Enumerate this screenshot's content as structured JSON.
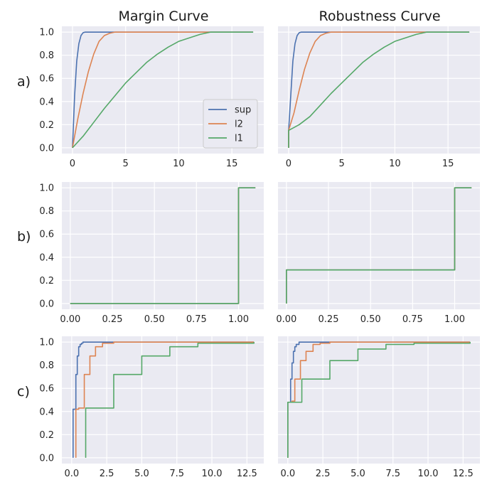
{
  "column_titles": [
    "Margin Curve",
    "Robustness Curve"
  ],
  "row_labels": [
    "a)",
    "b)",
    "c)"
  ],
  "legend": [
    "sup",
    "l2",
    "l1"
  ],
  "colors": {
    "sup": "#4c72b0",
    "l2": "#dd8452",
    "l1": "#55a868",
    "panel_bg": "#eaeaf2",
    "grid": "#ffffff"
  },
  "chart_data": [
    {
      "type": "line",
      "title": "Margin Curve",
      "row": "a)",
      "xlim": [
        -1,
        18
      ],
      "ylim": [
        -0.05,
        1.05
      ],
      "xticks": [
        0,
        5,
        10,
        15
      ],
      "xtick_labels": [
        "0",
        "5",
        "10",
        "15"
      ],
      "yticks": [
        0,
        0.2,
        0.4,
        0.6,
        0.8,
        1.0
      ],
      "ytick_labels": [
        "0.0",
        "0.2",
        "0.4",
        "0.6",
        "0.8",
        "1.0"
      ],
      "show_yticks": true,
      "legend_position": "center-right",
      "series": [
        {
          "name": "sup",
          "x": [
            0,
            0.2,
            0.4,
            0.6,
            0.8,
            1.0,
            1.2,
            17
          ],
          "y": [
            0,
            0.45,
            0.75,
            0.9,
            0.97,
            0.995,
            1.0,
            1.0
          ]
        },
        {
          "name": "l2",
          "x": [
            0,
            0.5,
            1,
            1.5,
            2,
            2.5,
            3,
            3.5,
            4,
            17
          ],
          "y": [
            0,
            0.25,
            0.47,
            0.66,
            0.81,
            0.92,
            0.97,
            0.99,
            1.0,
            1.0
          ]
        },
        {
          "name": "l1",
          "x": [
            0,
            1,
            2,
            3,
            4,
            5,
            6,
            7,
            8,
            9,
            10,
            11,
            12,
            13,
            17
          ],
          "y": [
            0,
            0.1,
            0.22,
            0.34,
            0.45,
            0.56,
            0.65,
            0.74,
            0.81,
            0.87,
            0.92,
            0.95,
            0.98,
            1.0,
            1.0
          ]
        }
      ]
    },
    {
      "type": "line",
      "title": "Robustness Curve",
      "row": "a)",
      "xlim": [
        -1,
        18
      ],
      "ylim": [
        -0.05,
        1.05
      ],
      "xticks": [
        0,
        5,
        10,
        15
      ],
      "xtick_labels": [
        "0",
        "5",
        "10",
        "15"
      ],
      "yticks": [
        0,
        0.2,
        0.4,
        0.6,
        0.8,
        1.0
      ],
      "ytick_labels": [],
      "show_yticks": false,
      "series": [
        {
          "name": "sup",
          "x": [
            0,
            0,
            0.2,
            0.4,
            0.6,
            0.8,
            1.0,
            1.2,
            17
          ],
          "y": [
            0,
            0.15,
            0.45,
            0.75,
            0.9,
            0.97,
            0.995,
            1.0,
            1.0
          ]
        },
        {
          "name": "l2",
          "x": [
            0,
            0,
            0.5,
            1,
            1.5,
            2,
            2.5,
            3,
            3.5,
            4,
            17
          ],
          "y": [
            0,
            0.15,
            0.3,
            0.5,
            0.68,
            0.82,
            0.92,
            0.97,
            0.99,
            1.0,
            1.0
          ]
        },
        {
          "name": "l1",
          "x": [
            0,
            0,
            1,
            2,
            3,
            4,
            5,
            6,
            7,
            8,
            9,
            10,
            11,
            12,
            13,
            17
          ],
          "y": [
            0,
            0.15,
            0.2,
            0.27,
            0.37,
            0.47,
            0.56,
            0.65,
            0.74,
            0.81,
            0.87,
            0.92,
            0.95,
            0.98,
            1.0,
            1.0
          ]
        }
      ]
    },
    {
      "type": "line",
      "title": "",
      "row": "b)",
      "xlim": [
        -0.05,
        1.15
      ],
      "ylim": [
        -0.05,
        1.05
      ],
      "xticks": [
        0,
        0.25,
        0.5,
        0.75,
        1.0
      ],
      "xtick_labels": [
        "0.00",
        "0.25",
        "0.50",
        "0.75",
        "1.00"
      ],
      "yticks": [
        0,
        0.2,
        0.4,
        0.6,
        0.8,
        1.0
      ],
      "ytick_labels": [
        "0.0",
        "0.2",
        "0.4",
        "0.6",
        "0.8",
        "1.0"
      ],
      "show_yticks": true,
      "series": [
        {
          "name": "sup",
          "x": [
            0,
            1.0,
            1.0,
            1.1
          ],
          "y": [
            0,
            0,
            1,
            1
          ]
        },
        {
          "name": "l2",
          "x": [
            0,
            1.0,
            1.0,
            1.1
          ],
          "y": [
            0,
            0,
            1,
            1
          ]
        },
        {
          "name": "l1",
          "x": [
            0,
            1.0,
            1.0,
            1.1
          ],
          "y": [
            0,
            0,
            1,
            1
          ]
        }
      ]
    },
    {
      "type": "line",
      "title": "",
      "row": "b)",
      "xlim": [
        -0.05,
        1.15
      ],
      "ylim": [
        -0.05,
        1.05
      ],
      "xticks": [
        0,
        0.25,
        0.5,
        0.75,
        1.0
      ],
      "xtick_labels": [
        "0.00",
        "0.25",
        "0.50",
        "0.75",
        "1.00"
      ],
      "yticks": [
        0,
        0.2,
        0.4,
        0.6,
        0.8,
        1.0
      ],
      "ytick_labels": [],
      "show_yticks": false,
      "series": [
        {
          "name": "sup",
          "x": [
            0,
            0,
            1.0,
            1.0,
            1.1
          ],
          "y": [
            0,
            0.29,
            0.29,
            1,
            1
          ]
        },
        {
          "name": "l2",
          "x": [
            0,
            0,
            1.0,
            1.0,
            1.1
          ],
          "y": [
            0,
            0.29,
            0.29,
            1,
            1
          ]
        },
        {
          "name": "l1",
          "x": [
            0,
            0,
            1.0,
            1.0,
            1.1
          ],
          "y": [
            0,
            0.29,
            0.29,
            1,
            1
          ]
        }
      ]
    },
    {
      "type": "line",
      "title": "",
      "row": "c)",
      "xlim": [
        -0.7,
        13.7
      ],
      "ylim": [
        -0.05,
        1.05
      ],
      "xticks": [
        0,
        2.5,
        5,
        7.5,
        10,
        12.5
      ],
      "xtick_labels": [
        "0.0",
        "2.5",
        "5.0",
        "7.5",
        "10.0",
        "12.5"
      ],
      "yticks": [
        0,
        0.2,
        0.4,
        0.6,
        0.8,
        1.0
      ],
      "ytick_labels": [
        "0.0",
        "0.2",
        "0.4",
        "0.6",
        "0.8",
        "1.0"
      ],
      "show_yticks": true,
      "step": true,
      "series": [
        {
          "name": "sup",
          "x": [
            0.1,
            0.1,
            0.3,
            0.4,
            0.5,
            0.6,
            0.7,
            0.8,
            1.0,
            13
          ],
          "y": [
            0,
            0.42,
            0.72,
            0.88,
            0.96,
            0.98,
            0.99,
            1.0,
            1.0,
            1.0
          ]
        },
        {
          "name": "l2",
          "x": [
            0.3,
            0.3,
            0.5,
            0.9,
            1.3,
            1.7,
            2.2,
            3,
            13
          ],
          "y": [
            0,
            0.42,
            0.43,
            0.72,
            0.88,
            0.96,
            0.99,
            1.0,
            1.0
          ]
        },
        {
          "name": "l1",
          "x": [
            1,
            1,
            3,
            5,
            7,
            9,
            13
          ],
          "y": [
            0,
            0.43,
            0.72,
            0.88,
            0.96,
            0.99,
            1.0
          ]
        }
      ]
    },
    {
      "type": "line",
      "title": "",
      "row": "c)",
      "xlim": [
        -0.7,
        13.7
      ],
      "ylim": [
        -0.05,
        1.05
      ],
      "xticks": [
        0,
        2.5,
        5,
        7.5,
        10,
        12.5
      ],
      "xtick_labels": [
        "0.0",
        "2.5",
        "5.0",
        "7.5",
        "10.0",
        "12.5"
      ],
      "yticks": [
        0,
        0.2,
        0.4,
        0.6,
        0.8,
        1.0
      ],
      "ytick_labels": [],
      "show_yticks": false,
      "step": true,
      "series": [
        {
          "name": "sup",
          "x": [
            0,
            0,
            0.2,
            0.3,
            0.4,
            0.5,
            0.6,
            0.8,
            1.0,
            13
          ],
          "y": [
            0,
            0.48,
            0.68,
            0.82,
            0.92,
            0.96,
            0.98,
            1.0,
            1.0,
            1.0
          ]
        },
        {
          "name": "l2",
          "x": [
            0,
            0,
            0.3,
            0.5,
            0.9,
            1.3,
            1.8,
            2.3,
            3,
            13
          ],
          "y": [
            0,
            0.48,
            0.49,
            0.68,
            0.84,
            0.92,
            0.98,
            0.99,
            1.0,
            1.0
          ]
        },
        {
          "name": "l1",
          "x": [
            0,
            0,
            1,
            3,
            5,
            7,
            9,
            13
          ],
          "y": [
            0,
            0.48,
            0.68,
            0.84,
            0.94,
            0.98,
            0.99,
            1.0
          ]
        }
      ]
    }
  ]
}
